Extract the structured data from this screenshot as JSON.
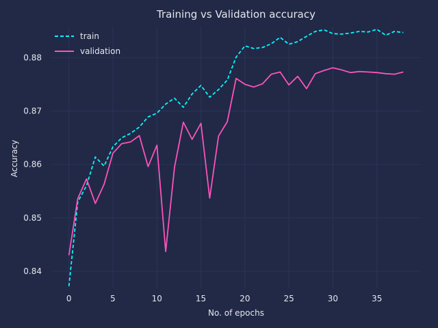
{
  "chart_data": {
    "type": "line",
    "title": "Training vs Validation accuracy",
    "xlabel": "No. of epochs",
    "ylabel": "Accuracy",
    "xlim": [
      -2,
      40
    ],
    "ylim": [
      0.8368,
      0.8858
    ],
    "xticks": [
      0,
      5,
      10,
      15,
      20,
      25,
      30,
      35
    ],
    "yticks": [
      0.84,
      0.85,
      0.86,
      0.87,
      0.88
    ],
    "xtick_labels": [
      "0",
      "5",
      "10",
      "15",
      "20",
      "25",
      "30",
      "35"
    ],
    "ytick_labels": [
      "0.84",
      "0.85",
      "0.86",
      "0.87",
      "0.88"
    ],
    "grid": true,
    "legend_position": "top-left",
    "background": "#212946",
    "grid_color": "#2a3459",
    "x": [
      0,
      1,
      2,
      3,
      4,
      5,
      6,
      7,
      8,
      9,
      10,
      11,
      12,
      13,
      14,
      15,
      16,
      17,
      18,
      19,
      20,
      21,
      22,
      23,
      24,
      25,
      26,
      27,
      28,
      29,
      30,
      31,
      32,
      33,
      34,
      35,
      36,
      37,
      38
    ],
    "series": [
      {
        "name": "train",
        "color": "#08F7FE",
        "style": "dashed",
        "values": [
          0.8372,
          0.853,
          0.856,
          0.8614,
          0.8597,
          0.8633,
          0.865,
          0.8658,
          0.867,
          0.8689,
          0.8696,
          0.8713,
          0.8724,
          0.8707,
          0.8732,
          0.8748,
          0.8726,
          0.874,
          0.8758,
          0.8801,
          0.8822,
          0.8817,
          0.8819,
          0.8826,
          0.8838,
          0.8825,
          0.883,
          0.884,
          0.8849,
          0.8852,
          0.8845,
          0.8844,
          0.8846,
          0.8849,
          0.8848,
          0.8853,
          0.8842,
          0.8849,
          0.8847
        ]
      },
      {
        "name": "validation",
        "color": "#FE53BB",
        "style": "solid",
        "values": [
          0.843,
          0.8536,
          0.8573,
          0.8527,
          0.8563,
          0.8621,
          0.8639,
          0.8642,
          0.8654,
          0.8596,
          0.8636,
          0.8437,
          0.8595,
          0.8679,
          0.8647,
          0.8677,
          0.8537,
          0.8653,
          0.868,
          0.8761,
          0.875,
          0.8745,
          0.8751,
          0.8769,
          0.8773,
          0.8749,
          0.8765,
          0.8742,
          0.877,
          0.8776,
          0.8781,
          0.8777,
          0.8772,
          0.8774,
          0.8773,
          0.8772,
          0.877,
          0.8769,
          0.8773
        ]
      }
    ]
  }
}
